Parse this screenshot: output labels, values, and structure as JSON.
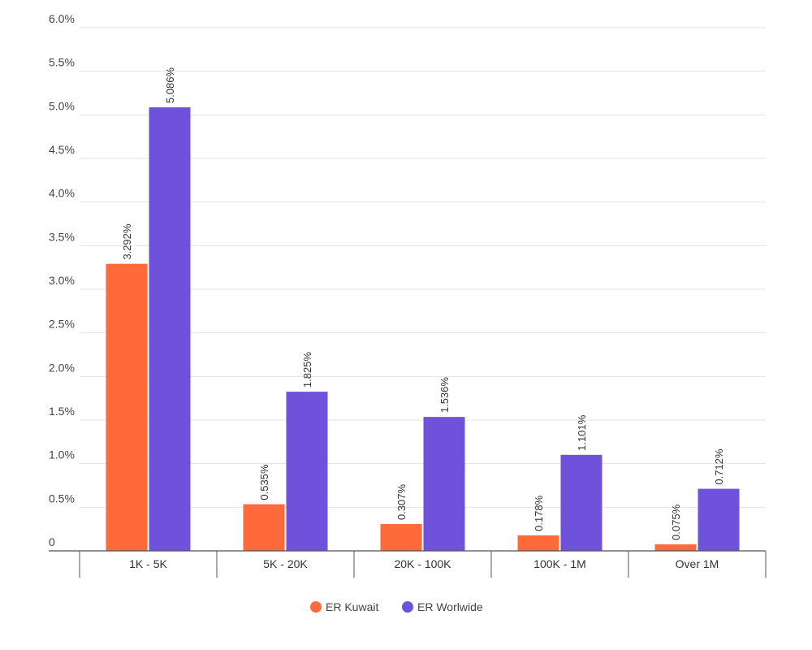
{
  "chart_data": {
    "type": "bar",
    "title": "",
    "xlabel": "",
    "ylabel": "",
    "categories": [
      "1K - 5K",
      "5K - 20K",
      "20K - 100K",
      "100K - 1M",
      "Over 1M"
    ],
    "series": [
      {
        "name": "ER Kuwait",
        "color": "#ff6a3b",
        "values": [
          3.292,
          0.535,
          0.307,
          0.178,
          0.075
        ],
        "labels": [
          "3.292%",
          "0.535%",
          "0.307%",
          "0.178%",
          "0.075%"
        ]
      },
      {
        "name": "ER Worlwide",
        "color": "#6f52dc",
        "values": [
          5.086,
          1.825,
          1.536,
          1.101,
          0.712
        ],
        "labels": [
          "5.086%",
          "1.825%",
          "1.536%",
          "1.101%",
          "0.712%"
        ]
      }
    ],
    "ylim": [
      0,
      6.0
    ],
    "yticks": [
      0,
      0.5,
      1.0,
      1.5,
      2.0,
      2.5,
      3.0,
      3.5,
      4.0,
      4.5,
      5.0,
      5.5,
      6.0
    ],
    "ytick_labels": [
      "0",
      "0.5%",
      "1.0%",
      "1.5%",
      "2.0%",
      "2.5%",
      "3.0%",
      "3.5%",
      "4.0%",
      "4.5%",
      "5.0%",
      "5.5%",
      "6.0%"
    ],
    "grid": true,
    "legend_position": "bottom-center"
  }
}
